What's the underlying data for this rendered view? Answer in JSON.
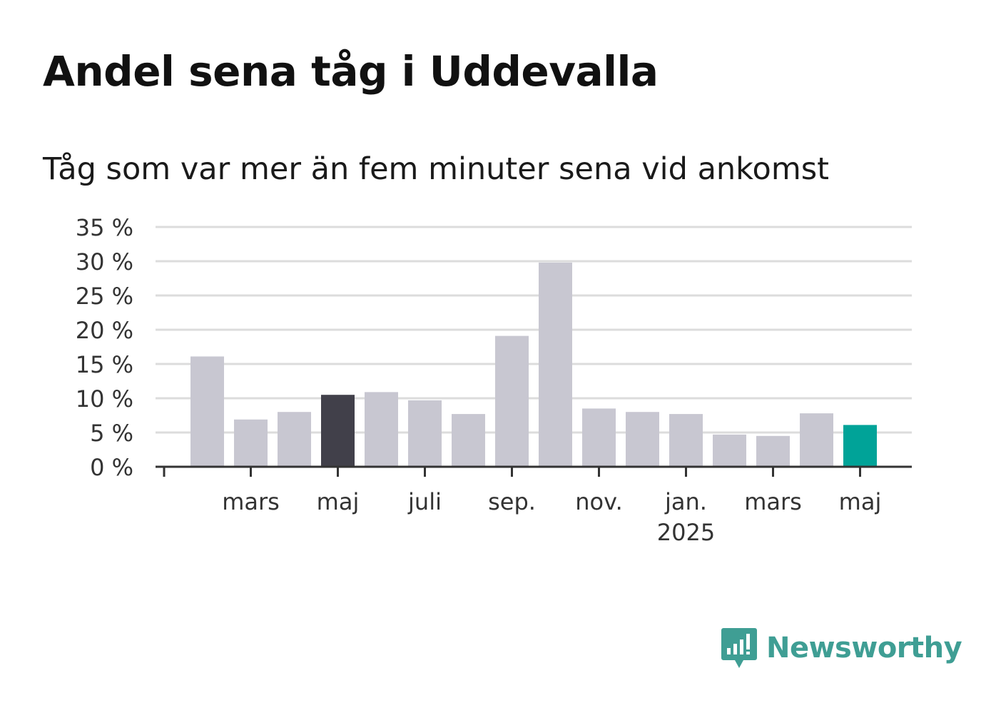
{
  "chart_data": {
    "type": "bar",
    "title": "Andel sena tåg i Uddevalla",
    "subtitle": "Tåg som var mer än fem minuter sena vid ankomst",
    "categories": [
      "2024-02",
      "2024-03",
      "2024-04",
      "2024-05",
      "2024-06",
      "2024-07",
      "2024-08",
      "2024-09",
      "2024-10",
      "2024-11",
      "2024-12",
      "2025-01",
      "2025-02",
      "2025-03",
      "2025-04",
      "2025-05"
    ],
    "values": [
      16.1,
      6.9,
      8.0,
      10.5,
      10.9,
      9.7,
      7.7,
      19.1,
      29.8,
      8.5,
      8.0,
      7.7,
      4.7,
      4.5,
      7.8,
      6.1
    ],
    "highlight": {
      "2024-05": "#41404a",
      "2025-05": "#00a398"
    },
    "default_color": "#c8c7d1",
    "ylim": [
      0,
      35
    ],
    "y_ticks": [
      0,
      5,
      10,
      15,
      20,
      25,
      30,
      35
    ],
    "y_tick_suffix": " %",
    "x_tick_labels": [
      {
        "category": "2024-03",
        "label": "mars"
      },
      {
        "category": "2024-05",
        "label": "maj"
      },
      {
        "category": "2024-07",
        "label": "juli"
      },
      {
        "category": "2024-09",
        "label": "sep."
      },
      {
        "category": "2024-11",
        "label": "nov."
      },
      {
        "category": "2025-01",
        "label": "jan.",
        "sub": "2025"
      },
      {
        "category": "2025-03",
        "label": "mars"
      },
      {
        "category": "2025-05",
        "label": "maj"
      }
    ],
    "xlabel": "",
    "ylabel": "",
    "grid": true,
    "legend": "none"
  },
  "branding": {
    "name": "Newsworthy",
    "color": "#3f9e94",
    "icon": "bar-chart-speech-bubble-icon"
  }
}
